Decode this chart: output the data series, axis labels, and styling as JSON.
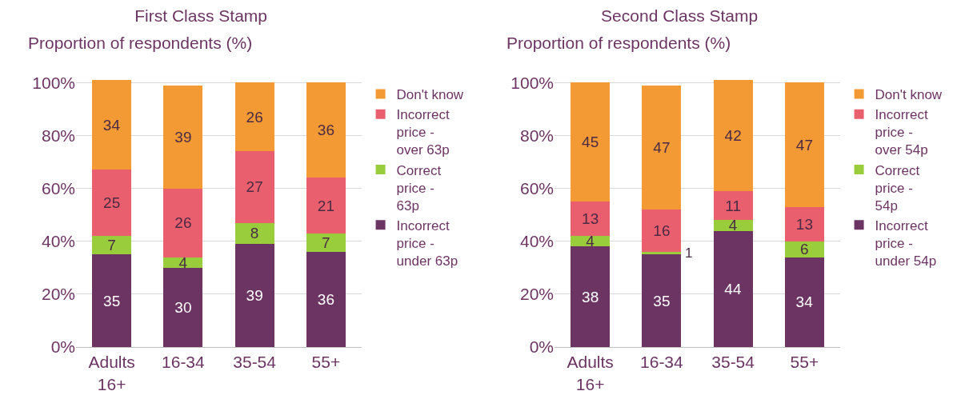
{
  "chart_data": [
    {
      "type": "bar",
      "stacked": true,
      "title": "First Class Stamp",
      "ylabel": "Proportion of respondents (%)",
      "categories": [
        "Adults 16+",
        "16-34",
        "35-54",
        "55+"
      ],
      "ylim": [
        0,
        101
      ],
      "yticks": [
        {
          "value": 0,
          "label": "0%"
        },
        {
          "value": 20,
          "label": "20%"
        },
        {
          "value": 40,
          "label": "40%"
        },
        {
          "value": 60,
          "label": "60%"
        },
        {
          "value": 80,
          "label": "80%"
        },
        {
          "value": 100,
          "label": "100%"
        }
      ],
      "grid": "y",
      "legend": "right",
      "data_labels": true,
      "series": [
        {
          "name": "Incorrect price - under 63p",
          "color": "#6b3462",
          "values": [
            35,
            30,
            39,
            36
          ]
        },
        {
          "name": "Correct price - 63p",
          "color": "#9acd3c",
          "values": [
            7,
            4,
            8,
            7
          ]
        },
        {
          "name": "Incorrect price - over 63p",
          "color": "#ea5f6e",
          "values": [
            25,
            26,
            27,
            21
          ]
        },
        {
          "name": "Don't know",
          "color": "#f39a35",
          "values": [
            34,
            39,
            26,
            36
          ]
        }
      ]
    },
    {
      "type": "bar",
      "stacked": true,
      "title": "Second Class Stamp",
      "ylabel": "Proportion of respondents (%)",
      "categories": [
        "Adults 16+",
        "16-34",
        "35-54",
        "55+"
      ],
      "ylim": [
        0,
        101
      ],
      "yticks": [
        {
          "value": 0,
          "label": "0%"
        },
        {
          "value": 20,
          "label": "20%"
        },
        {
          "value": 40,
          "label": "40%"
        },
        {
          "value": 60,
          "label": "60%"
        },
        {
          "value": 80,
          "label": "80%"
        },
        {
          "value": 100,
          "label": "100%"
        }
      ],
      "grid": "y",
      "legend": "right",
      "data_labels": true,
      "series": [
        {
          "name": "Incorrect price - under 54p",
          "color": "#6b3462",
          "values": [
            38,
            35,
            44,
            34
          ]
        },
        {
          "name": "Correct price - 54p",
          "color": "#9acd3c",
          "values": [
            4,
            1,
            4,
            6
          ]
        },
        {
          "name": "Incorrect price - over 54p",
          "color": "#ea5f6e",
          "values": [
            13,
            16,
            11,
            13
          ]
        },
        {
          "name": "Don't know",
          "color": "#f39a35",
          "values": [
            45,
            47,
            42,
            47
          ]
        }
      ]
    }
  ]
}
